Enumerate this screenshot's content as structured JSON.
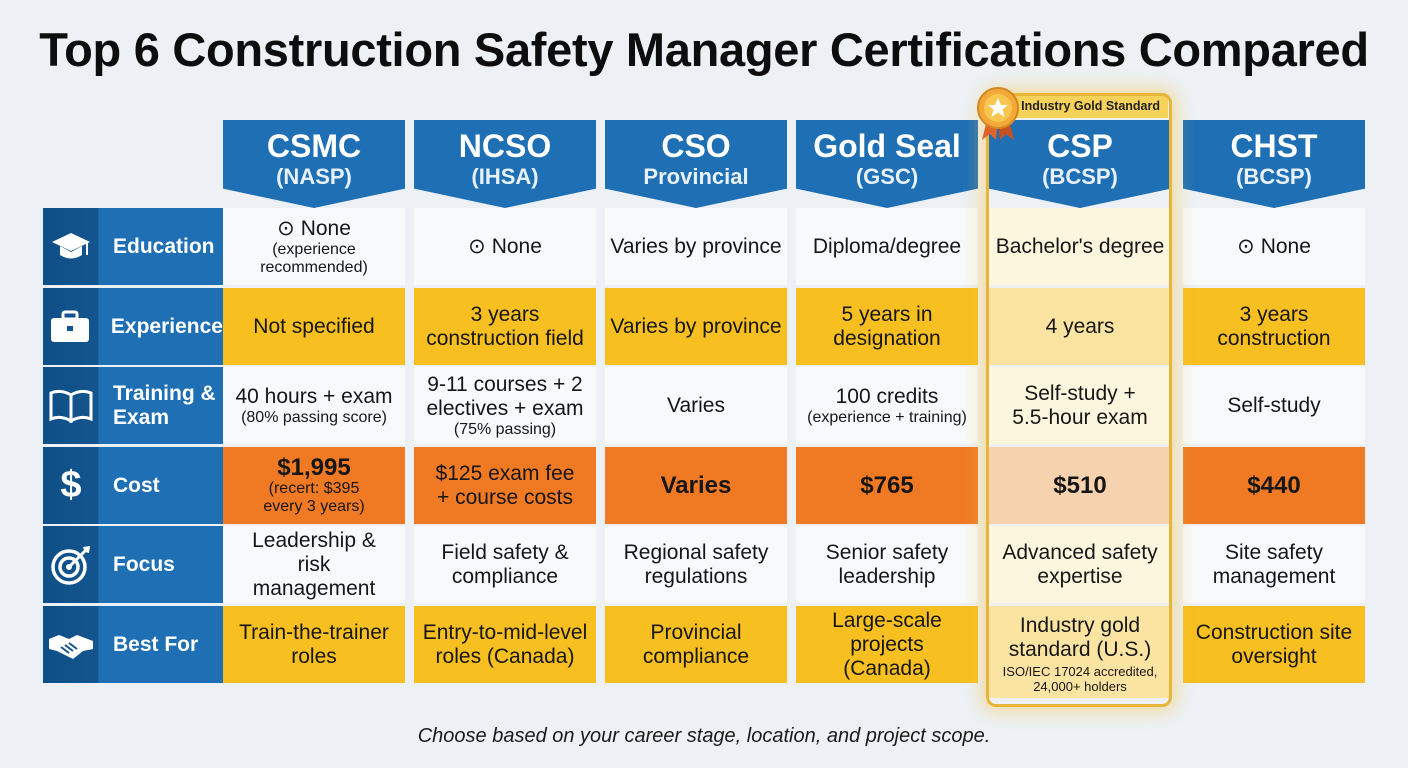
{
  "title": "Top 6 Construction Safety Manager Certifications Compared",
  "badge": "Industry Gold Standard",
  "footer": "Choose based on your career stage, location, and project scope.",
  "columns": [
    {
      "name": "CSMC",
      "org": "(NASP)"
    },
    {
      "name": "NCSO",
      "org": "(IHSA)"
    },
    {
      "name": "CSO",
      "org": "Provincial"
    },
    {
      "name": "Gold Seal",
      "org": "(GSC)"
    },
    {
      "name": "CSP",
      "org": "(BCSP)"
    },
    {
      "name": "CHST",
      "org": "(BCSP)"
    }
  ],
  "rows": [
    {
      "label": "Education",
      "icon": "graduation-cap-icon"
    },
    {
      "label": "Experience",
      "icon": "briefcase-icon"
    },
    {
      "label": "Training & Exam",
      "icon": "open-book-icon"
    },
    {
      "label": "Cost",
      "icon": "dollar-sign-icon"
    },
    {
      "label": "Focus",
      "icon": "target-icon"
    },
    {
      "label": "Best For",
      "icon": "handshake-icon"
    }
  ],
  "cells": {
    "education": [
      {
        "main": "None",
        "sub": "(experience recommended)"
      },
      {
        "main": "None"
      },
      {
        "main": "Varies by province"
      },
      {
        "main": "Diploma/degree"
      },
      {
        "main": "Bachelor's degree"
      },
      {
        "main": "None"
      }
    ],
    "experience": [
      {
        "main": "Not specified"
      },
      {
        "main": "3 years construction field"
      },
      {
        "main": "Varies by province"
      },
      {
        "main": "5 years in designation"
      },
      {
        "main": "4 years"
      },
      {
        "main": "3 years construction"
      }
    ],
    "training": [
      {
        "main": "40 hours + exam",
        "sub": "(80% passing score)"
      },
      {
        "main": "9-11 courses + 2 electives + exam",
        "sub": "(75% passing)"
      },
      {
        "main": "Varies"
      },
      {
        "main": "100 credits",
        "sub": "(experience + training)"
      },
      {
        "main": "Self-study + 5.5-hour exam"
      },
      {
        "main": "Self-study"
      }
    ],
    "cost": [
      {
        "main": "$1,995",
        "sub": "(recert: $395 every 3 years)"
      },
      {
        "main": "$125 exam fee + course costs"
      },
      {
        "main": "Varies"
      },
      {
        "main": "$765"
      },
      {
        "main": "$510"
      },
      {
        "main": "$440"
      }
    ],
    "focus": [
      {
        "main": "Leadership & risk management"
      },
      {
        "main": "Field safety & compliance"
      },
      {
        "main": "Regional safety regulations"
      },
      {
        "main": "Senior safety leadership"
      },
      {
        "main": "Advanced safety expertise"
      },
      {
        "main": "Site safety management"
      }
    ],
    "best_for": [
      {
        "main": "Train-the-trainer roles"
      },
      {
        "main": "Entry-to-mid-level roles (Canada)"
      },
      {
        "main": "Provincial compliance"
      },
      {
        "main": "Large-scale projects (Canada)"
      },
      {
        "main": "Industry gold standard (U.S.)",
        "sub": "ISO/IEC 17024 accredited, 24,000+ holders"
      },
      {
        "main": "Construction site oversight"
      }
    ]
  },
  "colors": {
    "header_blue": "#1f6fb5",
    "yellow": "#f7bf1f",
    "orange": "#f07a24",
    "gold": "#e7b53a"
  }
}
